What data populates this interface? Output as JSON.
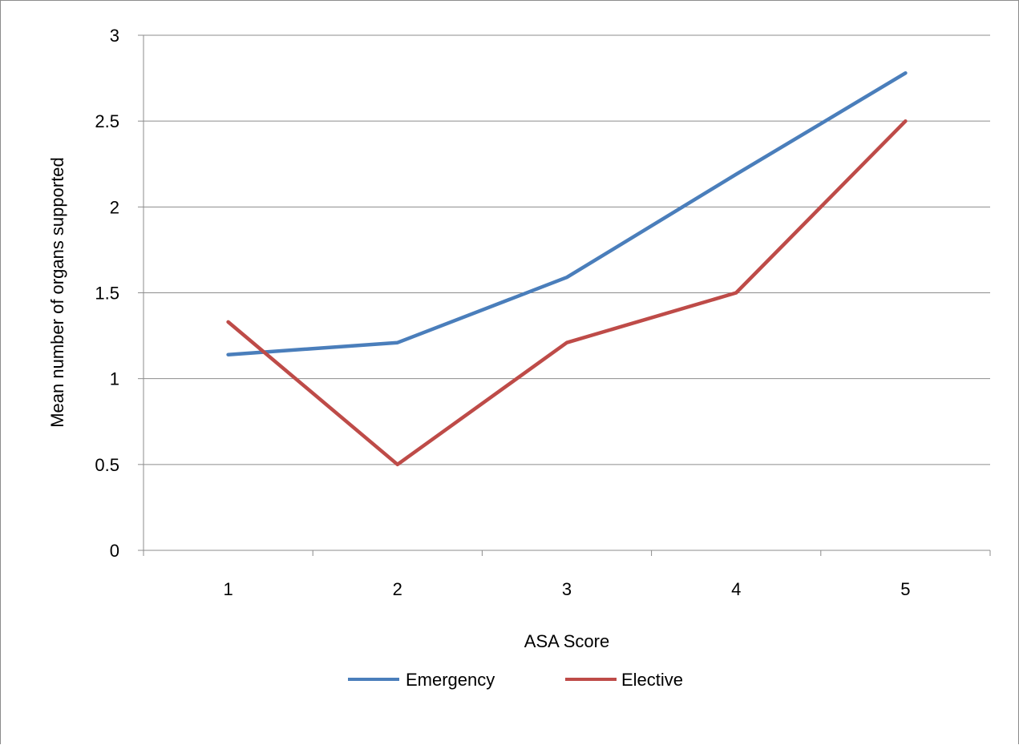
{
  "chart_data": {
    "type": "line",
    "title": "",
    "xlabel": "ASA Score",
    "ylabel": "Mean number of organs supported",
    "categories": [
      "1",
      "2",
      "3",
      "4",
      "5"
    ],
    "ylim": [
      0,
      3
    ],
    "yticks": [
      0,
      0.5,
      1,
      1.5,
      2,
      2.5,
      3
    ],
    "ytick_labels": [
      "0",
      "0.5",
      "1",
      "1.5",
      "2",
      "2.5",
      "3"
    ],
    "grid": "horizontal",
    "legend_position": "bottom",
    "series": [
      {
        "name": "Emergency",
        "color": "#4a7ebb",
        "values": [
          1.14,
          1.21,
          1.59,
          2.19,
          2.78
        ]
      },
      {
        "name": "Elective",
        "color": "#be4b48",
        "values": [
          1.33,
          0.5,
          1.21,
          1.5,
          2.5
        ]
      }
    ]
  }
}
